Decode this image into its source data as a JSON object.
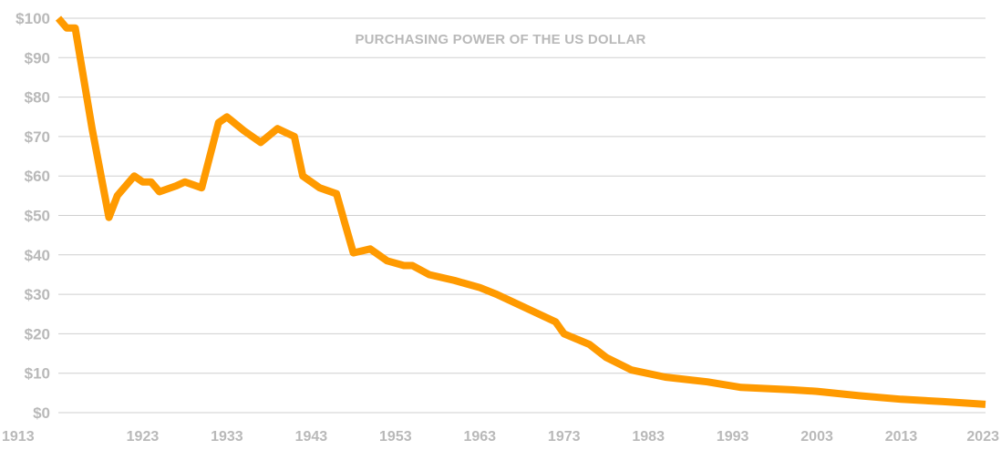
{
  "chart_data": {
    "type": "line",
    "title": "PURCHASING POWER OF THE US DOLLAR",
    "xlabel": "",
    "ylabel": "",
    "xlim": [
      1913,
      2023
    ],
    "ylim": [
      0,
      100
    ],
    "grid": true,
    "x_ticks": [
      "1913",
      "1923",
      "1933",
      "1943",
      "1953",
      "1963",
      "1973",
      "1983",
      "1993",
      "2003",
      "2013",
      "2023"
    ],
    "y_ticks": [
      "$0",
      "$10",
      "$20",
      "$30",
      "$40",
      "$50",
      "$60",
      "$70",
      "$80",
      "$90",
      "$100"
    ],
    "series_color": "#ff9a00",
    "series": [
      {
        "x": [
          1913,
          1914,
          1915,
          1917,
          1919,
          1920,
          1922,
          1923,
          1924,
          1925,
          1927,
          1928,
          1930,
          1932,
          1933,
          1935,
          1937,
          1939,
          1940,
          1941,
          1942,
          1944,
          1946,
          1947,
          1948,
          1950,
          1952,
          1954,
          1955,
          1957,
          1960,
          1963,
          1965,
          1969,
          1972,
          1973,
          1976,
          1978,
          1981,
          1985,
          1990,
          1994,
          2000,
          2003,
          2008,
          2013,
          2018,
          2023
        ],
        "values": [
          100,
          97.5,
          97.5,
          72,
          49.5,
          55,
          60,
          58.5,
          58.5,
          56,
          57.5,
          58.5,
          57,
          73.5,
          75,
          71.5,
          68.5,
          72,
          71,
          70,
          60,
          57,
          55.5,
          48,
          40.5,
          41.5,
          38.5,
          37.3,
          37.3,
          35,
          33.5,
          31.7,
          30,
          26,
          23,
          20,
          17.3,
          14,
          10.8,
          9,
          7.8,
          6.4,
          5.8,
          5.4,
          4.3,
          3.4,
          2.8,
          2.1
        ]
      }
    ]
  }
}
